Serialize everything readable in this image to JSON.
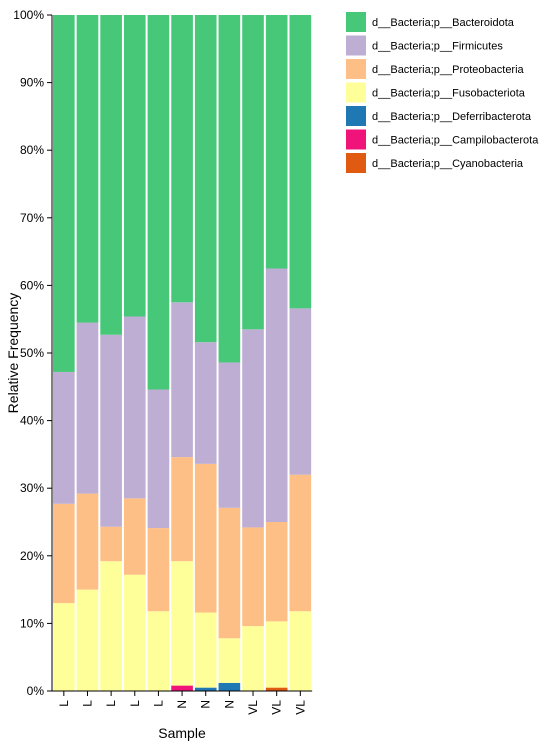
{
  "chart_data": {
    "type": "bar",
    "stacked": true,
    "normalized": true,
    "xlabel": "Sample",
    "ylabel": "Relative Frequency",
    "ylim": [
      0,
      1
    ],
    "yticks": [
      "0%",
      "10%",
      "20%",
      "30%",
      "40%",
      "50%",
      "60%",
      "70%",
      "80%",
      "90%",
      "100%"
    ],
    "categories": [
      "L",
      "L",
      "L",
      "L",
      "L",
      "N",
      "N",
      "N",
      "VL",
      "VL",
      "VL"
    ],
    "legend_position": "top-right",
    "series": [
      {
        "name": "d__Bacteria;p__Cyanobacteria",
        "color": "#e05a12",
        "values": [
          0,
          0,
          0,
          0,
          0,
          0,
          0,
          0,
          0,
          0.005,
          0
        ]
      },
      {
        "name": "d__Bacteria;p__Campilobacterota",
        "color": "#f0147a",
        "values": [
          0,
          0,
          0,
          0,
          0,
          0.008,
          0,
          0,
          0,
          0,
          0
        ]
      },
      {
        "name": "d__Bacteria;p__Deferribacterota",
        "color": "#1f77b4",
        "values": [
          0,
          0,
          0,
          0,
          0,
          0,
          0.005,
          0.012,
          0,
          0,
          0
        ]
      },
      {
        "name": "d__Bacteria;p__Fusobacteriota",
        "color": "#ffff99",
        "values": [
          0.13,
          0.15,
          0.192,
          0.172,
          0.118,
          0.184,
          0.111,
          0.066,
          0.096,
          0.098,
          0.118
        ]
      },
      {
        "name": "d__Bacteria;p__Proteobacteria",
        "color": "#fdbf86",
        "values": [
          0.147,
          0.142,
          0.051,
          0.113,
          0.123,
          0.154,
          0.22,
          0.193,
          0.146,
          0.147,
          0.202
        ]
      },
      {
        "name": "d__Bacteria;p__Firmicutes",
        "color": "#beaed4",
        "values": [
          0.195,
          0.253,
          0.284,
          0.269,
          0.205,
          0.229,
          0.18,
          0.215,
          0.293,
          0.375,
          0.246
        ]
      },
      {
        "name": "d__Bacteria;p__Bacteroidota",
        "color": "#47c878",
        "values": [
          0.528,
          0.455,
          0.473,
          0.446,
          0.554,
          0.425,
          0.484,
          0.514,
          0.465,
          0.375,
          0.434
        ]
      }
    ]
  }
}
